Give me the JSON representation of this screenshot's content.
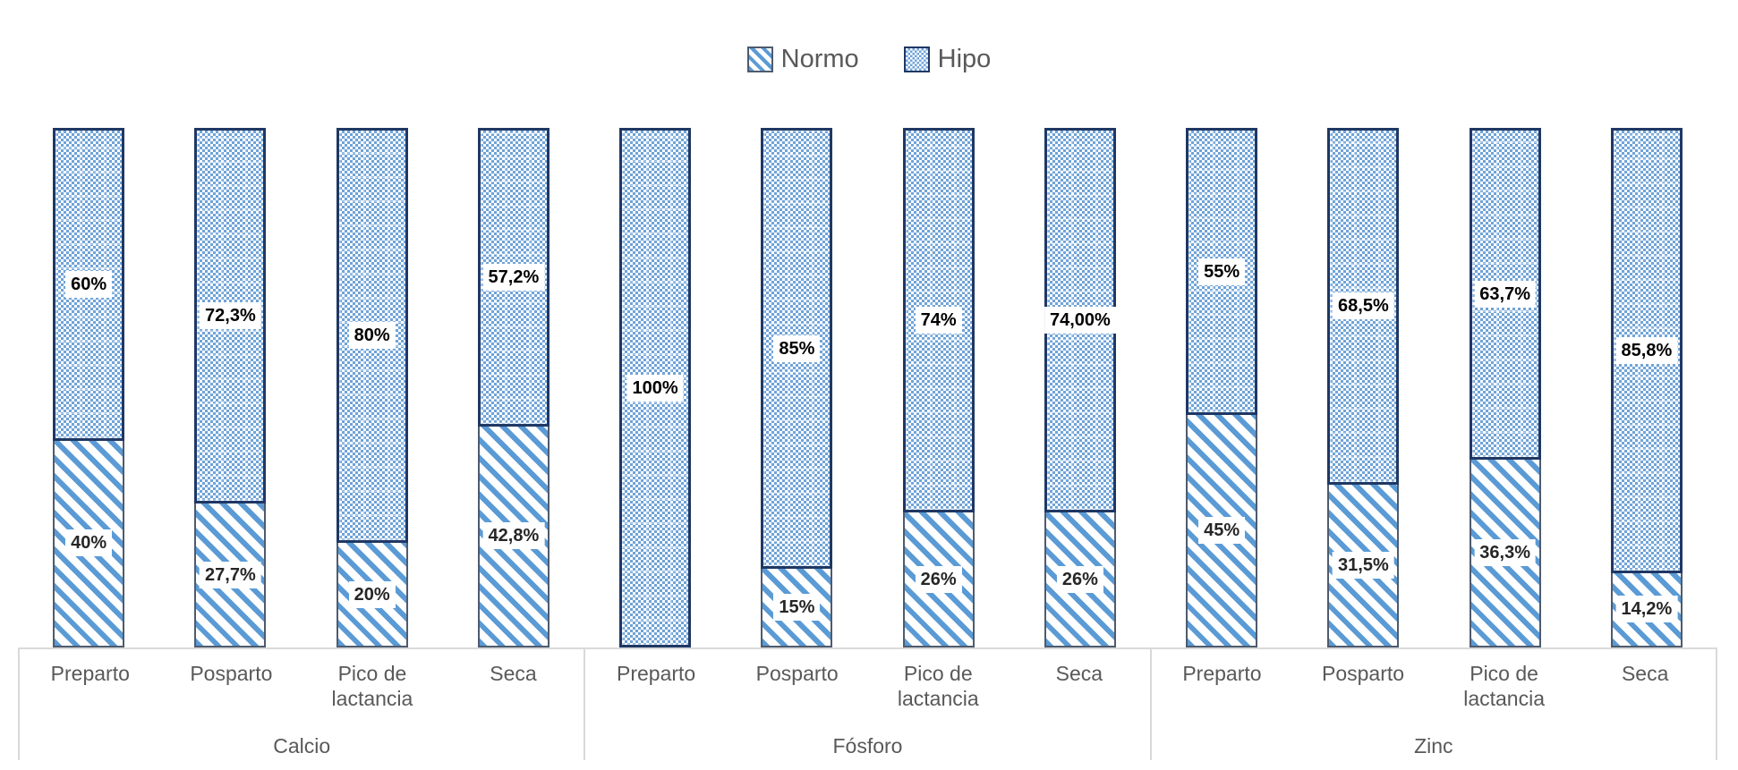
{
  "legend": {
    "items": [
      {
        "label": "Normo",
        "pattern": "diagonal-stripes"
      },
      {
        "label": "Hipo",
        "pattern": "dots"
      }
    ]
  },
  "chart_data": {
    "type": "bar",
    "stacked": true,
    "percent_stacked": true,
    "orientation": "vertical",
    "ylim": [
      0,
      100
    ],
    "grid": false,
    "legend_position": "top",
    "series_names": [
      "Normo",
      "Hipo"
    ],
    "groups": [
      {
        "label": "Calcio",
        "bars": [
          {
            "category": "Preparto",
            "normo": 40,
            "hipo": 60,
            "normo_label": "40%",
            "hipo_label": "60%"
          },
          {
            "category": "Posparto",
            "normo": 27.7,
            "hipo": 72.3,
            "normo_label": "27,7%",
            "hipo_label": "72,3%"
          },
          {
            "category": "Pico de lactancia",
            "normo": 20,
            "hipo": 80,
            "normo_label": "20%",
            "hipo_label": "80%"
          },
          {
            "category": "Seca",
            "normo": 42.8,
            "hipo": 57.2,
            "normo_label": "42,8%",
            "hipo_label": "57,2%"
          }
        ]
      },
      {
        "label": "Fósforo",
        "bars": [
          {
            "category": "Preparto",
            "normo": 0,
            "hipo": 100,
            "normo_label": null,
            "hipo_label": "100%"
          },
          {
            "category": "Posparto",
            "normo": 15,
            "hipo": 85,
            "normo_label": "15%",
            "hipo_label": "85%"
          },
          {
            "category": "Pico de lactancia",
            "normo": 26,
            "hipo": 74,
            "normo_label": "26%",
            "hipo_label": "74%"
          },
          {
            "category": "Seca",
            "normo": 26,
            "hipo": 74,
            "normo_label": "26%",
            "hipo_label": "74,00%"
          }
        ]
      },
      {
        "label": "Zinc",
        "bars": [
          {
            "category": "Preparto",
            "normo": 45,
            "hipo": 55,
            "normo_label": "45%",
            "hipo_label": "55%"
          },
          {
            "category": "Posparto",
            "normo": 31.5,
            "hipo": 68.5,
            "normo_label": "31,5%",
            "hipo_label": "68,5%"
          },
          {
            "category": "Pico de lactancia",
            "normo": 36.3,
            "hipo": 63.7,
            "normo_label": "36,3%",
            "hipo_label": "63,7%"
          },
          {
            "category": "Seca",
            "normo": 14.2,
            "hipo": 85.8,
            "normo_label": "14,2%",
            "hipo_label": "85,8%"
          }
        ]
      }
    ]
  },
  "colors": {
    "stripe_blue": "#5B9BD5",
    "dot_blue": "#6FA3D8",
    "hipo_border": "#1F3864",
    "normo_border": "#4E5B6E",
    "axis_line": "#D9D9D9",
    "text_gray": "#595959",
    "hipo_label_text": "#000000",
    "normo_label_text": "#262626"
  }
}
